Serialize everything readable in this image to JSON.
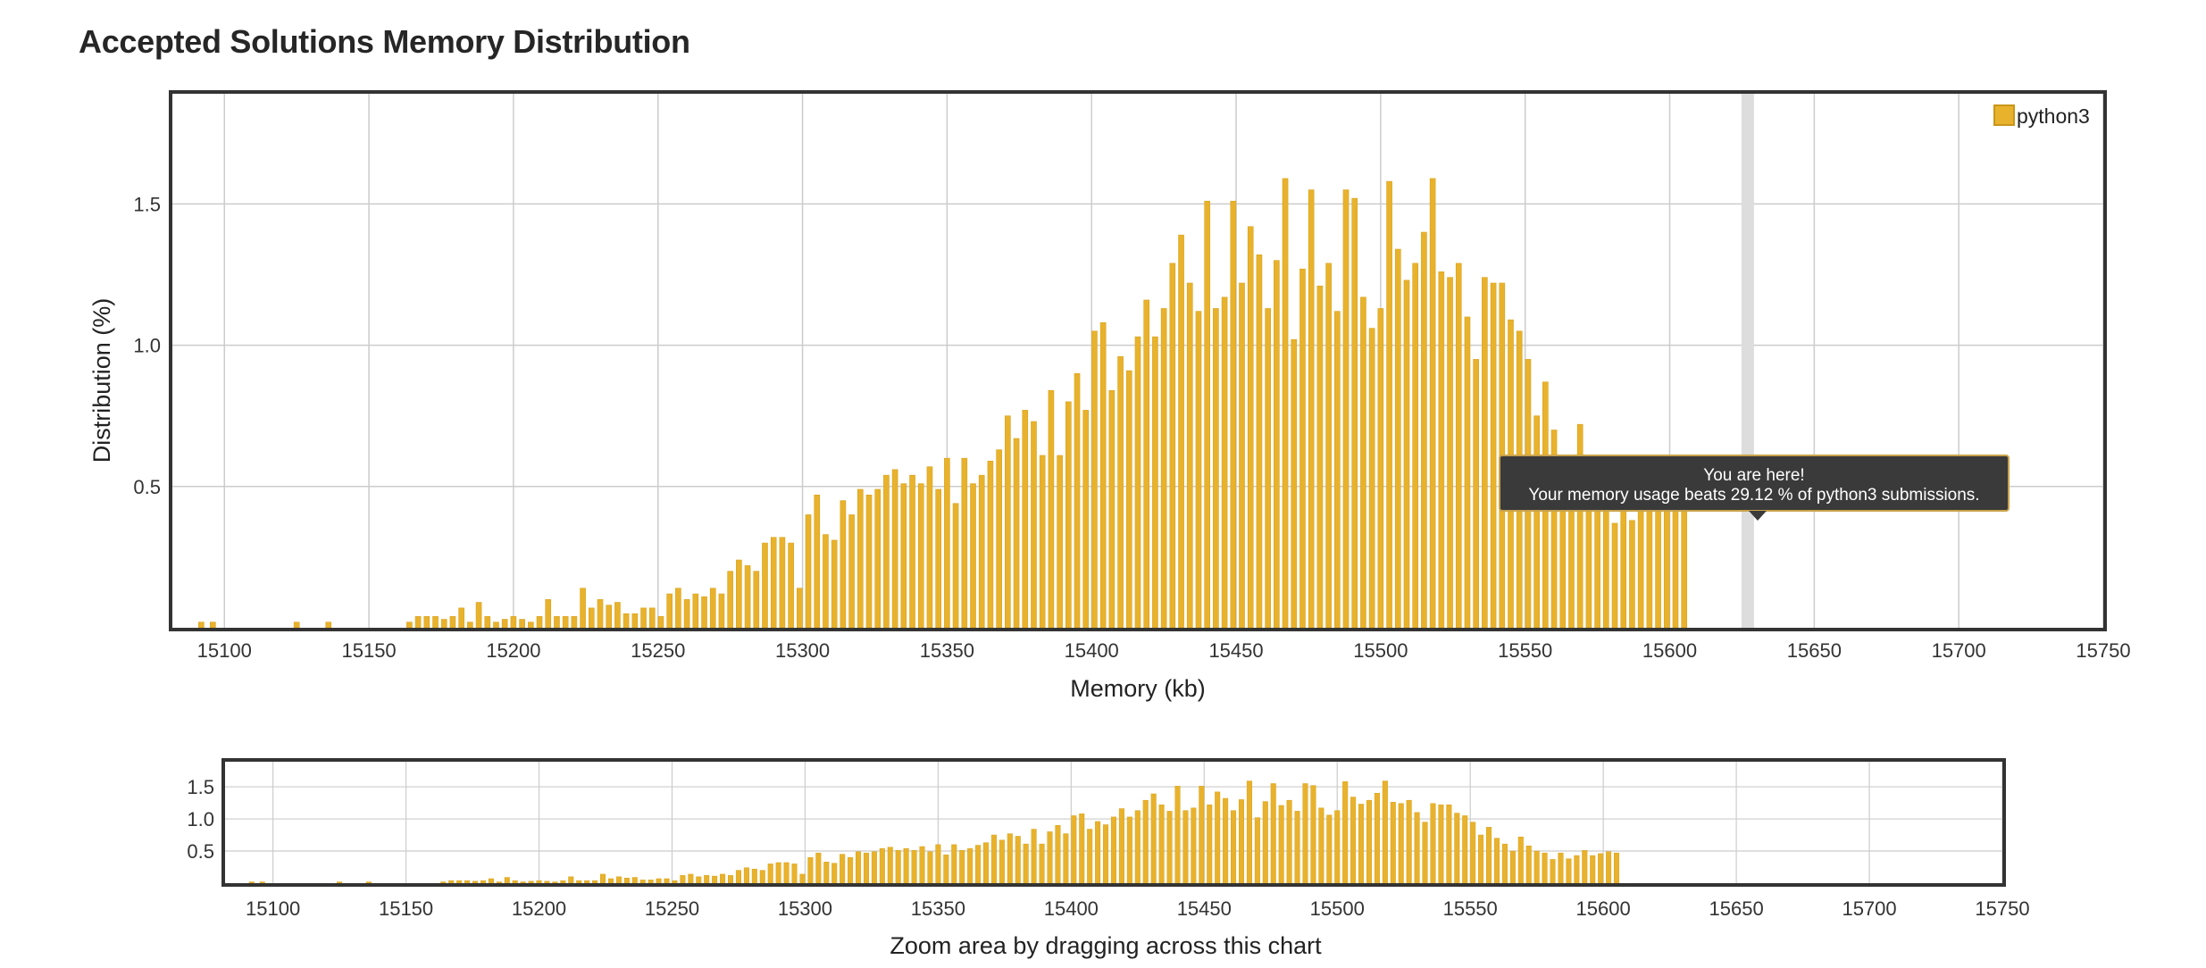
{
  "title": "Accepted Solutions Memory Distribution",
  "tooltip": {
    "line1": "You are here!",
    "line2": "Your memory usage beats 29.12 % of python3 submissions."
  },
  "navigator_label": "Zoom area by dragging across this chart",
  "colors": {
    "bar": "#e8b22c",
    "bar_edge": "#d9a21c",
    "highlight_band": "#dddddd",
    "tooltip_bg": "#3a3a3a",
    "frame": "#333333",
    "grid": "#cccccc"
  },
  "chart_data": {
    "type": "bar",
    "xlabel": "Memory (kb)",
    "ylabel": "Distribution (%)",
    "xlim": [
      15082,
      15750
    ],
    "ylim": [
      0,
      1.89
    ],
    "x_ticks": [
      15100,
      15150,
      15200,
      15250,
      15300,
      15350,
      15400,
      15450,
      15500,
      15550,
      15600,
      15650,
      15700,
      15750
    ],
    "y_ticks": [
      0.5,
      1.0,
      1.5
    ],
    "y_tick_labels": [
      "0.5",
      "1.0",
      "1.5"
    ],
    "nav_y_ticks": [
      0.5,
      1.0,
      1.5
    ],
    "nav_y_tick_labels": [
      "0.5",
      "1.0",
      "1.5"
    ],
    "legend": {
      "series": "python3",
      "position": "top-right"
    },
    "grid": true,
    "highlight_x": 15627,
    "series": [
      {
        "name": "python3",
        "points": [
          [
            15092,
            0.02
          ],
          [
            15096,
            0.02
          ],
          [
            15125,
            0.02
          ],
          [
            15136,
            0.02
          ],
          [
            15164,
            0.02
          ],
          [
            15167,
            0.04
          ],
          [
            15170,
            0.04
          ],
          [
            15173,
            0.04
          ],
          [
            15176,
            0.03
          ],
          [
            15179,
            0.04
          ],
          [
            15182,
            0.07
          ],
          [
            15185,
            0.02
          ],
          [
            15188,
            0.09
          ],
          [
            15191,
            0.04
          ],
          [
            15194,
            0.02
          ],
          [
            15197,
            0.03
          ],
          [
            15200,
            0.04
          ],
          [
            15203,
            0.03
          ],
          [
            15206,
            0.02
          ],
          [
            15209,
            0.04
          ],
          [
            15212,
            0.1
          ],
          [
            15215,
            0.04
          ],
          [
            15218,
            0.04
          ],
          [
            15221,
            0.04
          ],
          [
            15224,
            0.14
          ],
          [
            15227,
            0.07
          ],
          [
            15230,
            0.1
          ],
          [
            15233,
            0.08
          ],
          [
            15236,
            0.09
          ],
          [
            15239,
            0.05
          ],
          [
            15242,
            0.05
          ],
          [
            15245,
            0.07
          ],
          [
            15248,
            0.07
          ],
          [
            15251,
            0.04
          ],
          [
            15254,
            0.12
          ],
          [
            15257,
            0.14
          ],
          [
            15260,
            0.1
          ],
          [
            15263,
            0.12
          ],
          [
            15266,
            0.11
          ],
          [
            15269,
            0.14
          ],
          [
            15272,
            0.12
          ],
          [
            15275,
            0.2
          ],
          [
            15278,
            0.24
          ],
          [
            15281,
            0.22
          ],
          [
            15284,
            0.2
          ],
          [
            15287,
            0.3
          ],
          [
            15290,
            0.32
          ],
          [
            15293,
            0.32
          ],
          [
            15296,
            0.3
          ],
          [
            15299,
            0.14
          ],
          [
            15302,
            0.4
          ],
          [
            15305,
            0.47
          ],
          [
            15308,
            0.33
          ],
          [
            15311,
            0.31
          ],
          [
            15314,
            0.45
          ],
          [
            15317,
            0.4
          ],
          [
            15320,
            0.49
          ],
          [
            15323,
            0.47
          ],
          [
            15326,
            0.49
          ],
          [
            15329,
            0.54
          ],
          [
            15332,
            0.56
          ],
          [
            15335,
            0.51
          ],
          [
            15338,
            0.54
          ],
          [
            15341,
            0.51
          ],
          [
            15344,
            0.57
          ],
          [
            15347,
            0.49
          ],
          [
            15350,
            0.6
          ],
          [
            15353,
            0.44
          ],
          [
            15356,
            0.6
          ],
          [
            15359,
            0.51
          ],
          [
            15362,
            0.54
          ],
          [
            15365,
            0.59
          ],
          [
            15368,
            0.63
          ],
          [
            15371,
            0.75
          ],
          [
            15374,
            0.67
          ],
          [
            15377,
            0.77
          ],
          [
            15380,
            0.73
          ],
          [
            15383,
            0.61
          ],
          [
            15386,
            0.84
          ],
          [
            15389,
            0.61
          ],
          [
            15392,
            0.8
          ],
          [
            15395,
            0.9
          ],
          [
            15398,
            0.77
          ],
          [
            15401,
            1.05
          ],
          [
            15404,
            1.08
          ],
          [
            15407,
            0.84
          ],
          [
            15410,
            0.96
          ],
          [
            15413,
            0.91
          ],
          [
            15416,
            1.03
          ],
          [
            15419,
            1.16
          ],
          [
            15422,
            1.03
          ],
          [
            15425,
            1.13
          ],
          [
            15428,
            1.29
          ],
          [
            15431,
            1.39
          ],
          [
            15434,
            1.22
          ],
          [
            15437,
            1.12
          ],
          [
            15440,
            1.51
          ],
          [
            15443,
            1.13
          ],
          [
            15446,
            1.17
          ],
          [
            15449,
            1.51
          ],
          [
            15452,
            1.22
          ],
          [
            15455,
            1.42
          ],
          [
            15458,
            1.32
          ],
          [
            15461,
            1.13
          ],
          [
            15464,
            1.3
          ],
          [
            15467,
            1.59
          ],
          [
            15470,
            1.02
          ],
          [
            15473,
            1.27
          ],
          [
            15476,
            1.55
          ],
          [
            15479,
            1.21
          ],
          [
            15482,
            1.29
          ],
          [
            15485,
            1.12
          ],
          [
            15488,
            1.55
          ],
          [
            15491,
            1.52
          ],
          [
            15494,
            1.17
          ],
          [
            15497,
            1.06
          ],
          [
            15500,
            1.13
          ],
          [
            15503,
            1.58
          ],
          [
            15506,
            1.34
          ],
          [
            15509,
            1.23
          ],
          [
            15512,
            1.29
          ],
          [
            15515,
            1.4
          ],
          [
            15518,
            1.59
          ],
          [
            15521,
            1.26
          ],
          [
            15524,
            1.24
          ],
          [
            15527,
            1.29
          ],
          [
            15530,
            1.1
          ],
          [
            15533,
            0.95
          ],
          [
            15536,
            1.24
          ],
          [
            15539,
            1.22
          ],
          [
            15542,
            1.22
          ],
          [
            15545,
            1.09
          ],
          [
            15548,
            1.05
          ],
          [
            15551,
            0.95
          ],
          [
            15554,
            0.75
          ],
          [
            15557,
            0.87
          ],
          [
            15560,
            0.7
          ],
          [
            15563,
            0.61
          ],
          [
            15566,
            0.5
          ],
          [
            15569,
            0.72
          ],
          [
            15572,
            0.58
          ],
          [
            15575,
            0.5
          ],
          [
            15578,
            0.47
          ],
          [
            15581,
            0.37
          ],
          [
            15584,
            0.47
          ],
          [
            15587,
            0.38
          ],
          [
            15590,
            0.43
          ],
          [
            15593,
            0.51
          ],
          [
            15596,
            0.43
          ],
          [
            15599,
            0.46
          ],
          [
            15602,
            0.49
          ],
          [
            15605,
            0.47
          ]
        ]
      }
    ]
  }
}
